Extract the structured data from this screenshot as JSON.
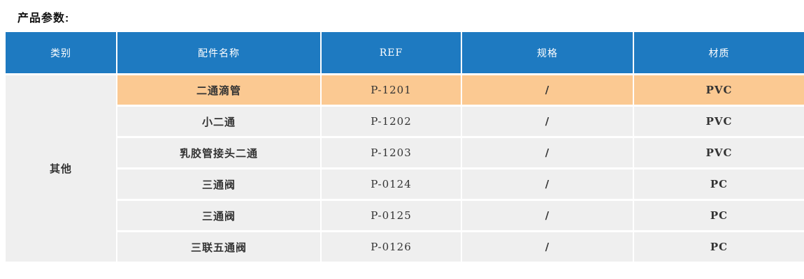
{
  "page_title": "产品参数:",
  "table": {
    "headers": [
      "类别",
      "配件名称",
      "REF",
      "规格",
      "材质"
    ],
    "category": "其他",
    "rows": [
      {
        "name": "二通滴管",
        "ref": "P-1201",
        "spec": "/",
        "material": "PVC",
        "highlighted": true
      },
      {
        "name": "小二通",
        "ref": "P-1202",
        "spec": "/",
        "material": "PVC",
        "highlighted": false
      },
      {
        "name": "乳胶管接头二通",
        "ref": "P-1203",
        "spec": "/",
        "material": "PVC",
        "highlighted": false
      },
      {
        "name": "三通阀",
        "ref": "P-0124",
        "spec": "/",
        "material": "PC",
        "highlighted": false
      },
      {
        "name": "三通阀",
        "ref": "P-0125",
        "spec": "/",
        "material": "PC",
        "highlighted": false
      },
      {
        "name": "三联五通阀",
        "ref": "P-0126",
        "spec": "/",
        "material": "PC",
        "highlighted": false
      }
    ],
    "colors": {
      "header_bg": "#1e7ac1",
      "header_fg": "#ffffff",
      "row_bg": "#efefef",
      "highlight_bg": "#fbc992",
      "body_fg": "#333333"
    }
  }
}
